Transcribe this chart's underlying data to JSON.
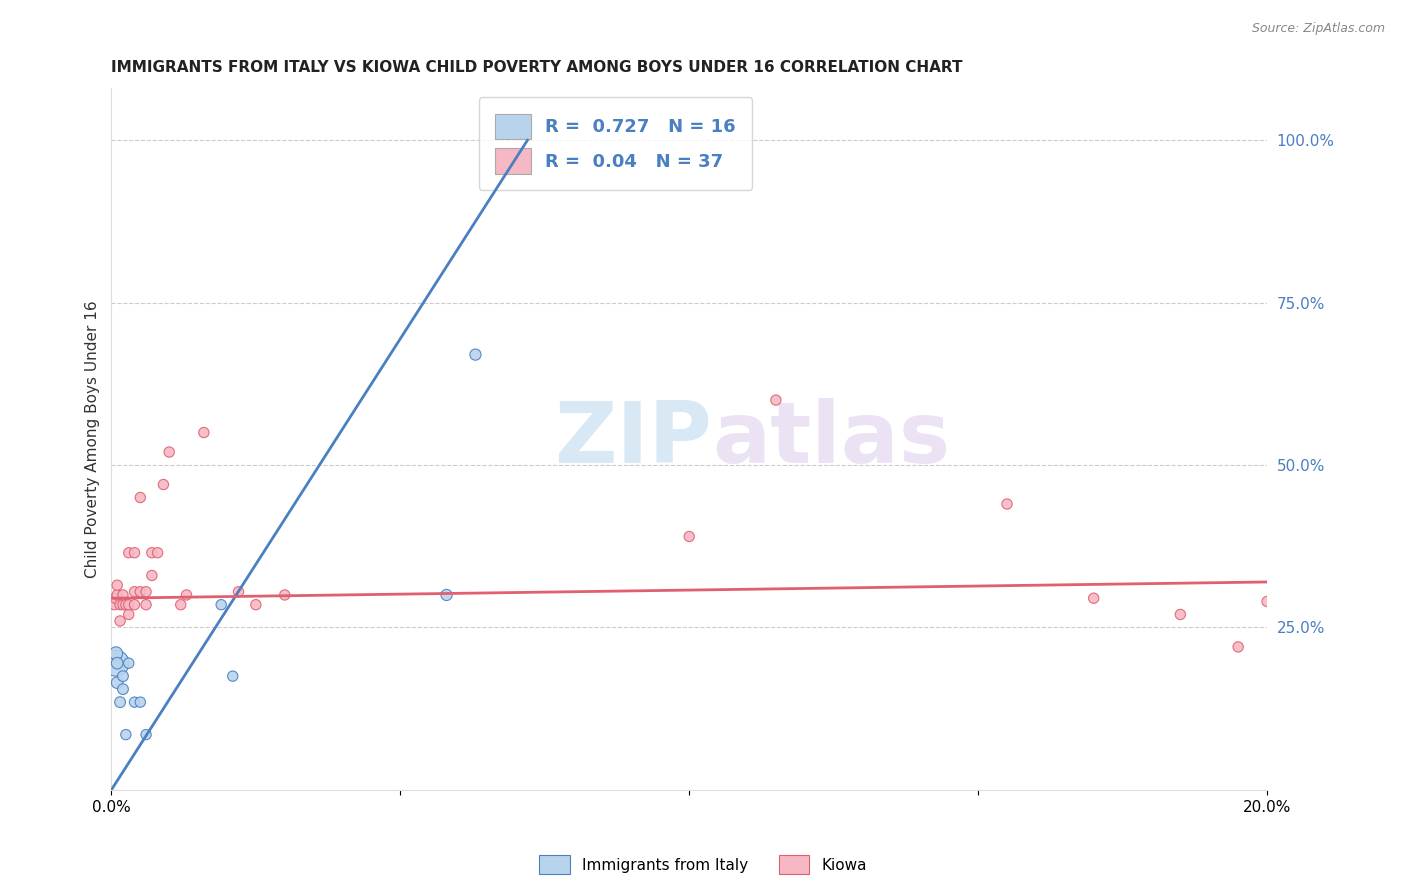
{
  "title": "IMMIGRANTS FROM ITALY VS KIOWA CHILD POVERTY AMONG BOYS UNDER 16 CORRELATION CHART",
  "source": "Source: ZipAtlas.com",
  "ylabel": "Child Poverty Among Boys Under 16",
  "legend_label1": "Immigrants from Italy",
  "legend_label2": "Kiowa",
  "R1": 0.727,
  "N1": 16,
  "R2": 0.04,
  "N2": 37,
  "color1": "#b8d4ec",
  "color2": "#f5b8c4",
  "line1_color": "#4a7fc1",
  "line2_color": "#e06070",
  "watermark_zip": "ZIP",
  "watermark_atlas": "atlas",
  "xlim": [
    0.0,
    0.2
  ],
  "ylim": [
    0.0,
    1.08
  ],
  "xtick_positions": [
    0.0,
    0.05,
    0.1,
    0.15,
    0.2
  ],
  "xtick_labels": [
    "0.0%",
    "",
    "",
    "",
    "20.0%"
  ],
  "yticks_right": [
    0.25,
    0.5,
    0.75,
    1.0
  ],
  "ytick_labels_right": [
    "25.0%",
    "50.0%",
    "75.0%",
    "100.0%"
  ],
  "italy_x": [
    0.0008,
    0.0008,
    0.001,
    0.001,
    0.0015,
    0.002,
    0.002,
    0.0025,
    0.003,
    0.004,
    0.005,
    0.006,
    0.019,
    0.021,
    0.058,
    0.063
  ],
  "italy_y": [
    0.195,
    0.21,
    0.165,
    0.195,
    0.135,
    0.155,
    0.175,
    0.085,
    0.195,
    0.135,
    0.135,
    0.085,
    0.285,
    0.175,
    0.3,
    0.67
  ],
  "italy_sizes": [
    350,
    90,
    70,
    70,
    60,
    60,
    60,
    55,
    55,
    55,
    55,
    55,
    55,
    55,
    65,
    65
  ],
  "kiowa_x": [
    0.0005,
    0.0007,
    0.001,
    0.001,
    0.0015,
    0.0015,
    0.002,
    0.002,
    0.0025,
    0.003,
    0.003,
    0.003,
    0.004,
    0.004,
    0.004,
    0.005,
    0.005,
    0.006,
    0.006,
    0.007,
    0.007,
    0.008,
    0.009,
    0.01,
    0.012,
    0.013,
    0.016,
    0.022,
    0.025,
    0.03,
    0.1,
    0.115,
    0.155,
    0.17,
    0.185,
    0.195,
    0.2
  ],
  "kiowa_y": [
    0.285,
    0.295,
    0.3,
    0.315,
    0.26,
    0.285,
    0.285,
    0.3,
    0.285,
    0.27,
    0.285,
    0.365,
    0.285,
    0.305,
    0.365,
    0.305,
    0.45,
    0.285,
    0.305,
    0.33,
    0.365,
    0.365,
    0.47,
    0.52,
    0.285,
    0.3,
    0.55,
    0.305,
    0.285,
    0.3,
    0.39,
    0.6,
    0.44,
    0.295,
    0.27,
    0.22,
    0.29
  ],
  "kiowa_sizes": [
    55,
    55,
    55,
    55,
    55,
    55,
    55,
    55,
    55,
    55,
    55,
    55,
    55,
    55,
    55,
    55,
    55,
    55,
    55,
    55,
    55,
    55,
    55,
    55,
    55,
    55,
    55,
    55,
    55,
    55,
    55,
    55,
    55,
    55,
    55,
    55,
    55
  ],
  "blue_line_x": [
    0.0,
    0.072
  ],
  "blue_line_y": [
    0.0,
    1.0
  ],
  "pink_line_x": [
    0.0,
    0.2
  ],
  "pink_line_y": [
    0.295,
    0.32
  ]
}
